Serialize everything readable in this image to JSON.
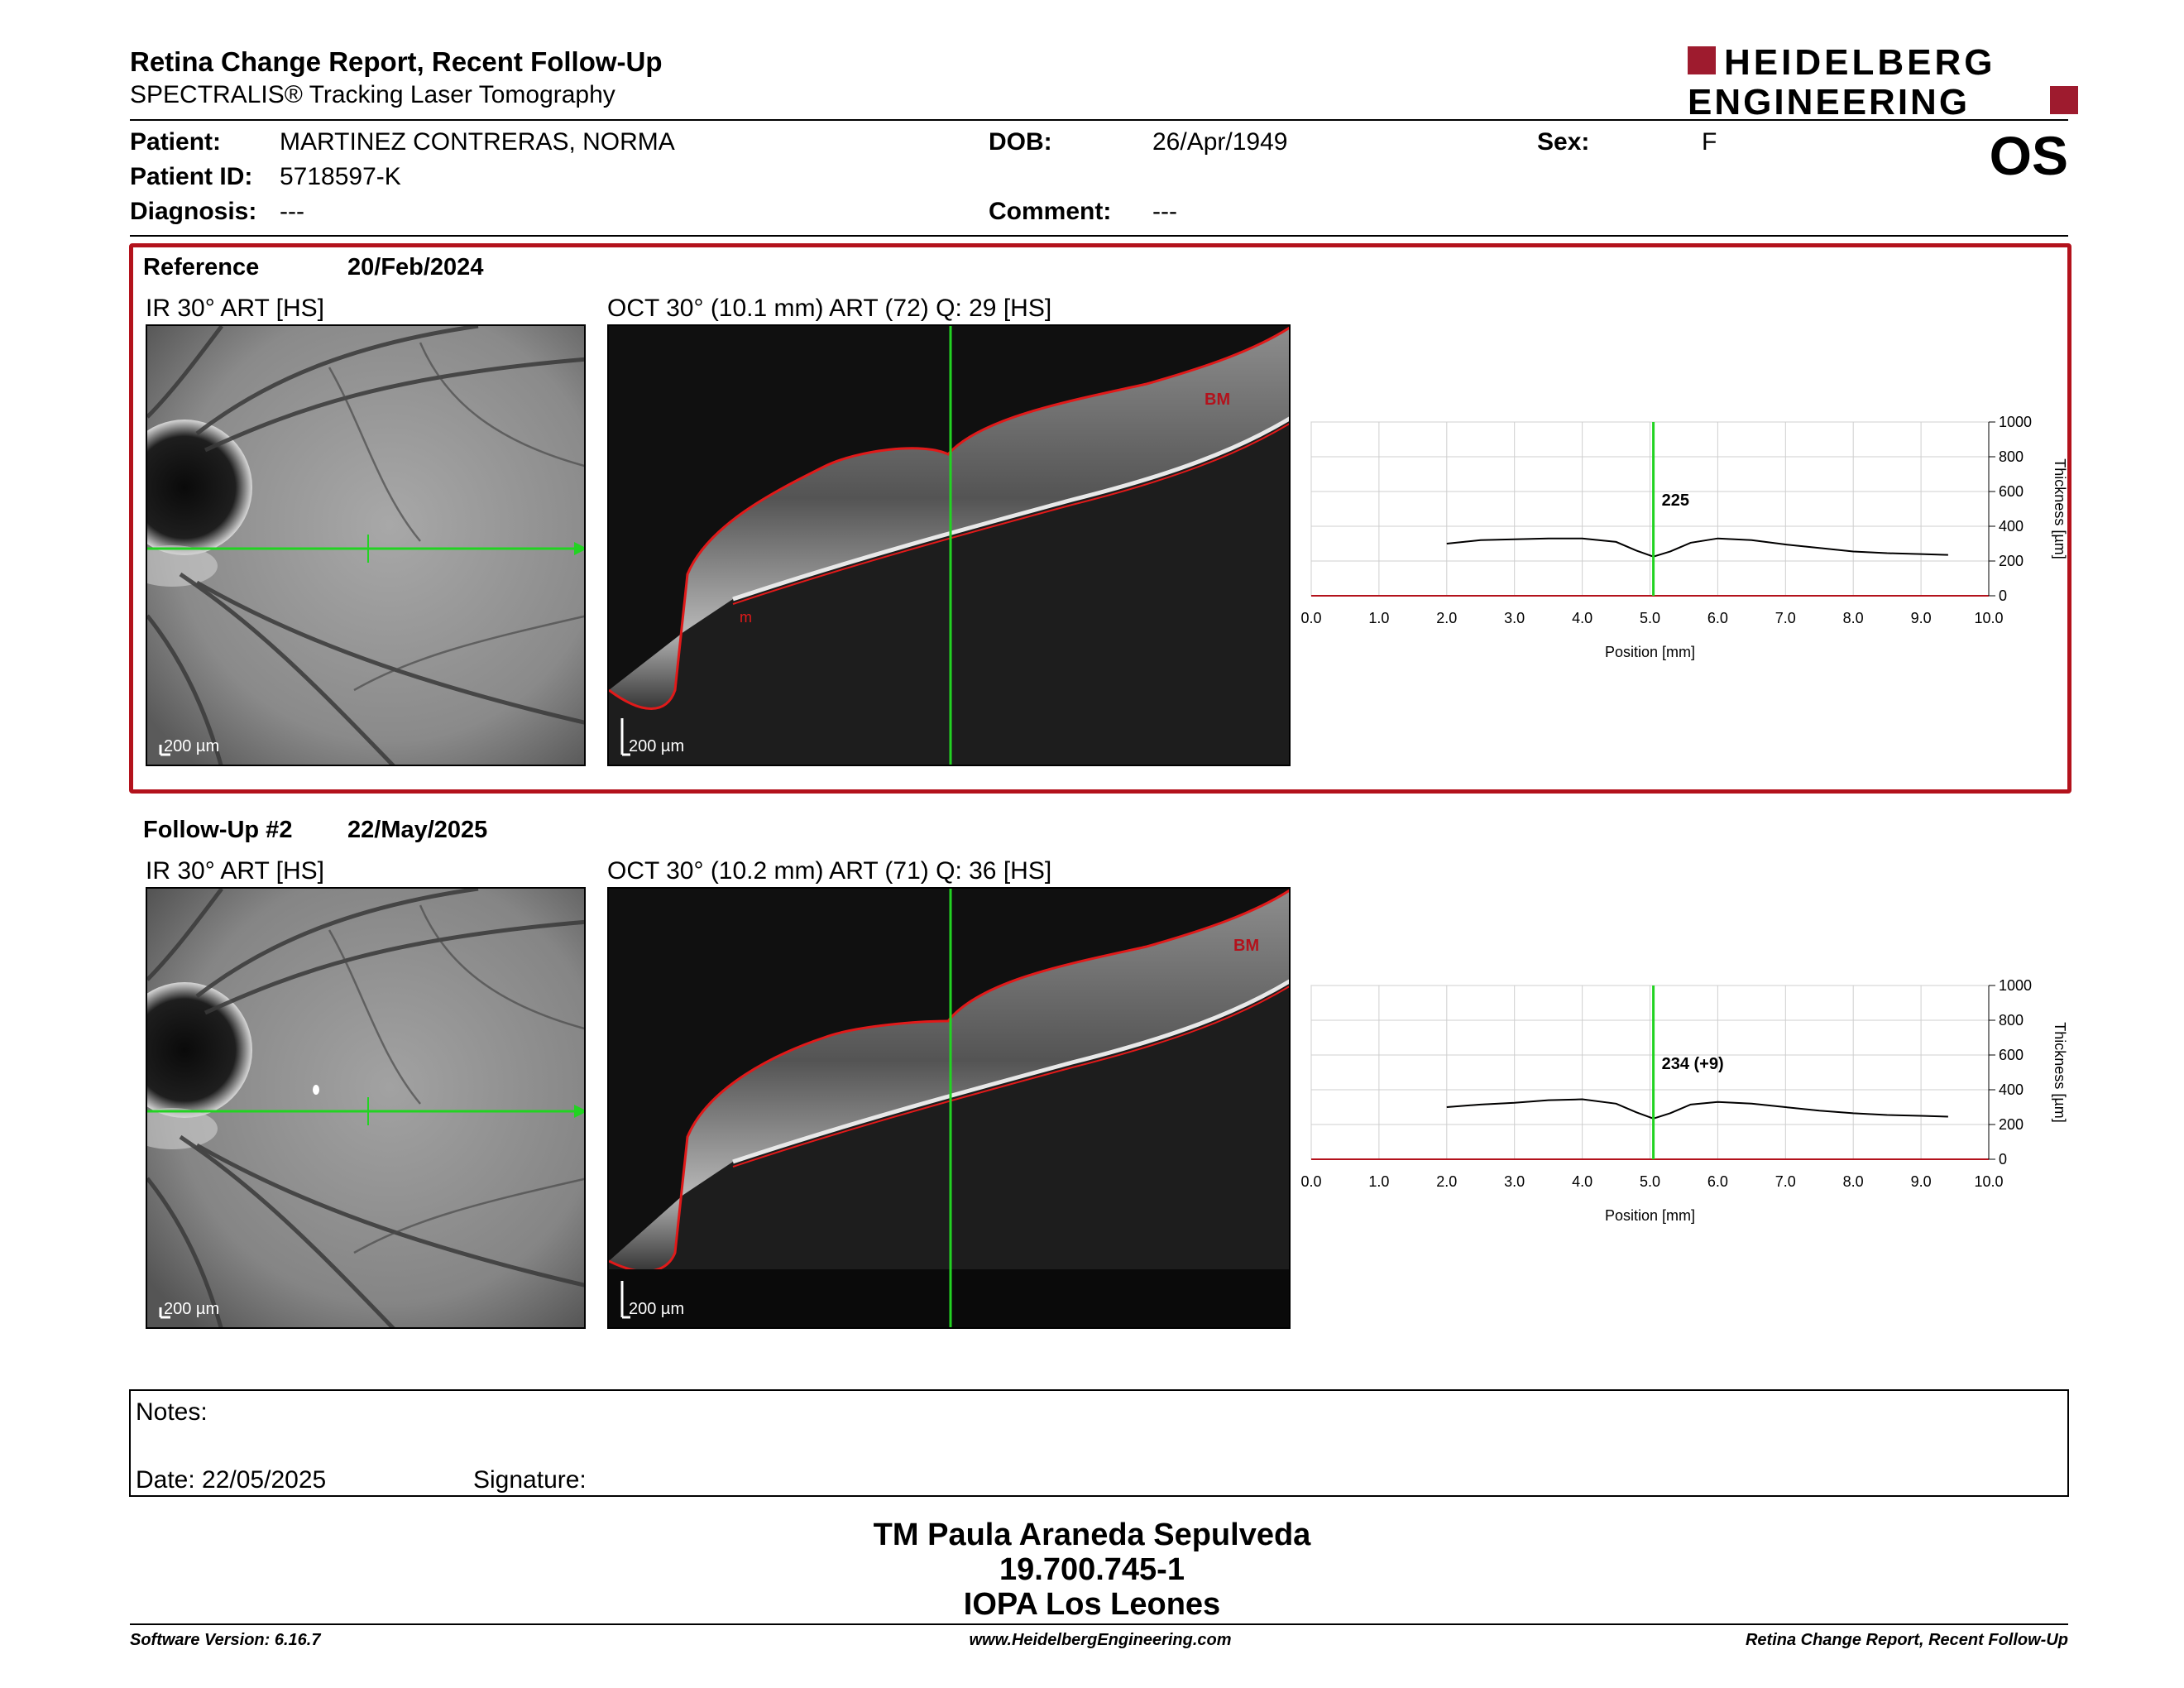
{
  "header": {
    "title": "Retina Change Report, Recent Follow-Up",
    "subtitle": "SPECTRALIS® Tracking Laser Tomography",
    "logo_line1": "HEIDELBERG",
    "logo_line2": "ENGINEERING",
    "brand_color": "#9e1b2e"
  },
  "patient": {
    "name_label": "Patient:",
    "name": "MARTINEZ CONTRERAS, NORMA",
    "id_label": "Patient ID:",
    "id": "5718597-K",
    "diagnosis_label": "Diagnosis:",
    "diagnosis": "---",
    "dob_label": "DOB:",
    "dob": "26/Apr/1949",
    "comment_label": "Comment:",
    "comment": "---",
    "sex_label": "Sex:",
    "sex": "F",
    "eye": "OS"
  },
  "reference": {
    "label": "Reference",
    "date": "20/Feb/2024",
    "ir_label": "IR 30° ART [HS]",
    "oct_label": "OCT 30° (10.1 mm) ART (72) Q: 29 [HS]",
    "scale_ir": "200 µm",
    "scale_oct": "200 µm",
    "layer_tag": "BM",
    "layer_tag2": "m",
    "highlight_color": "#b3121c"
  },
  "followup": {
    "label": "Follow-Up #2",
    "date": "22/May/2025",
    "ir_label": "IR 30° ART [HS]",
    "oct_label": "OCT 30° (10.2 mm) ART (71) Q: 36 [HS]",
    "scale_ir": "200 µm",
    "scale_oct": "200 µm",
    "layer_tag": "BM"
  },
  "chart_data": [
    {
      "type": "line",
      "xlabel": "Position [mm]",
      "ylabel": "Thickness [µm]",
      "xlim": [
        0,
        10
      ],
      "ylim": [
        0,
        1000
      ],
      "x_ticks": [
        "0.0",
        "1.0",
        "2.0",
        "3.0",
        "4.0",
        "5.0",
        "6.0",
        "7.0",
        "8.0",
        "9.0",
        "10.0"
      ],
      "y_ticks": [
        "0",
        "200",
        "400",
        "600",
        "800",
        "1000"
      ],
      "marker_x": 5.05,
      "marker_label": "225",
      "grid": true,
      "series": [
        {
          "x": [
            2.0,
            2.5,
            3.0,
            3.5,
            4.0,
            4.5,
            4.8,
            5.05,
            5.3,
            5.6,
            6.0,
            6.5,
            7.0,
            7.5,
            8.0,
            8.5,
            9.0,
            9.4
          ],
          "y": [
            300,
            320,
            325,
            330,
            330,
            310,
            260,
            225,
            255,
            305,
            330,
            320,
            295,
            275,
            255,
            245,
            240,
            235
          ]
        }
      ]
    },
    {
      "type": "line",
      "xlabel": "Position [mm]",
      "ylabel": "Thickness [µm]",
      "xlim": [
        0,
        10
      ],
      "ylim": [
        0,
        1000
      ],
      "x_ticks": [
        "0.0",
        "1.0",
        "2.0",
        "3.0",
        "4.0",
        "5.0",
        "6.0",
        "7.0",
        "8.0",
        "9.0",
        "10.0"
      ],
      "y_ticks": [
        "0",
        "200",
        "400",
        "600",
        "800",
        "1000"
      ],
      "marker_x": 5.05,
      "marker_label": "234 (+9)",
      "grid": true,
      "series": [
        {
          "x": [
            2.0,
            2.5,
            3.0,
            3.5,
            4.0,
            4.5,
            4.8,
            5.05,
            5.3,
            5.6,
            6.0,
            6.5,
            7.0,
            7.5,
            8.0,
            8.5,
            9.0,
            9.4
          ],
          "y": [
            300,
            315,
            325,
            340,
            345,
            320,
            270,
            234,
            265,
            315,
            330,
            320,
            300,
            280,
            265,
            255,
            250,
            245
          ]
        }
      ]
    }
  ],
  "notes": {
    "notes_label": "Notes:",
    "date_label": "Date: 22/05/2025",
    "signature_label": "Signature:"
  },
  "signer": {
    "name": "TM Paula Araneda Sepulveda",
    "rut": "19.700.745-1",
    "institution": "IOPA Los Leones"
  },
  "footer": {
    "software": "Software Version: 6.16.7",
    "website": "www.HeidelbergEngineering.com",
    "report": "Retina Change Report, Recent Follow-Up"
  }
}
